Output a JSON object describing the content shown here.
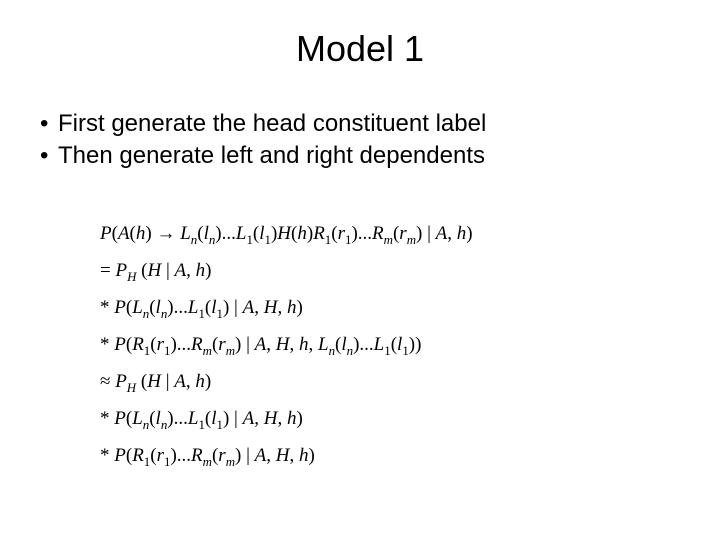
{
  "title": "Model 1",
  "bullets": [
    "First generate the head constituent label",
    "Then generate left and right dependents"
  ],
  "formulas": {
    "line1": "P(A(h) → Lₙ(lₙ)…L₁(l₁)H(h)R₁(r₁)…Rₘ(rₘ) | A, h)",
    "line2": "= P_H (H | A, h)",
    "line3": "* P(Lₙ(lₙ)…L₁(l₁) | A, H, h)",
    "line4": "* P(R₁(r₁)…Rₘ(rₘ) | A, H, h, Lₙ(lₙ)…L₁(l₁))",
    "line5": "≈ P_H (H | A, h)",
    "line6": "* P(Lₙ(lₙ)…L₁(l₁) | A, H, h)",
    "line7": "* P(R₁(r₁)…Rₘ(rₘ) | A, H, h)"
  }
}
